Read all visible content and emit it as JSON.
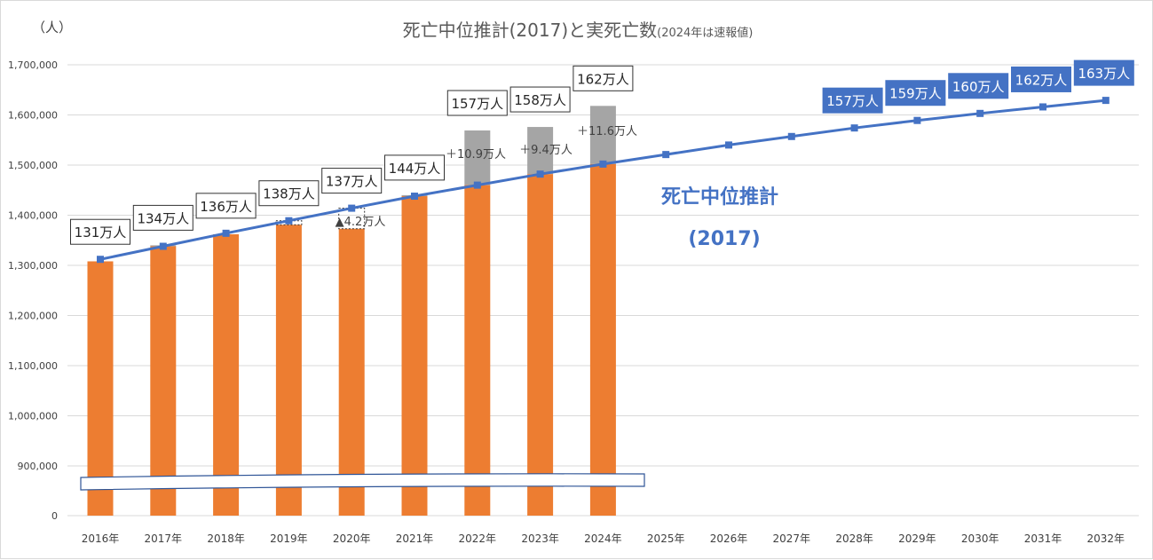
{
  "chart_data": {
    "type": "bar",
    "title": "死亡中位推計(2017)と実死亡数",
    "title_note": "(2024年は速報値)",
    "ylabel": "（人）",
    "ylim": [
      0,
      1700000
    ],
    "axis_break": [
      0,
      900000
    ],
    "yticks": [
      "0",
      "900,000",
      "1,000,000",
      "1,100,000",
      "1,200,000",
      "1,300,000",
      "1,400,000",
      "1,500,000",
      "1,600,000",
      "1,700,000"
    ],
    "ytick_values": [
      0,
      900000,
      1000000,
      1100000,
      1200000,
      1300000,
      1400000,
      1500000,
      1600000,
      1700000
    ],
    "categories": [
      "2016年",
      "2017年",
      "2018年",
      "2019年",
      "2020年",
      "2021年",
      "2022年",
      "2023年",
      "2024年",
      "2025年",
      "2026年",
      "2027年",
      "2028年",
      "2029年",
      "2030年",
      "2031年",
      "2032年"
    ],
    "series": [
      {
        "name": "実死亡数",
        "type": "bar",
        "color": "#ed7d31",
        "excess_color": "#a5a5a5",
        "values": [
          1308000,
          1340000,
          1362000,
          1381000,
          1373000,
          1440000,
          1569000,
          1576000,
          1618000,
          null,
          null,
          null,
          null,
          null,
          null,
          null,
          null
        ],
        "labels": [
          "131万人",
          "134万人",
          "136万人",
          "138万人",
          "137万人",
          "144万人",
          "157万人",
          "158万人",
          "162万人",
          null,
          null,
          null,
          null,
          null,
          null,
          null,
          null
        ]
      },
      {
        "name": "死亡中位推計(2017)",
        "type": "line",
        "color": "#4472c4",
        "values": [
          1312000,
          1338000,
          1364000,
          1389000,
          1414000,
          1438000,
          1460000,
          1482000,
          1502000,
          1521000,
          1540000,
          1557000,
          1574000,
          1589000,
          1603000,
          1616000,
          1629000
        ],
        "labels": [
          null,
          null,
          null,
          null,
          null,
          null,
          null,
          null,
          null,
          null,
          null,
          null,
          "157万人",
          "159万人",
          "160万人",
          "162万人",
          "163万人"
        ]
      }
    ],
    "annotations": [
      {
        "category": "2020年",
        "text": "▲4.2万人"
      },
      {
        "category": "2022年",
        "text": "＋10.9万人"
      },
      {
        "category": "2023年",
        "text": "＋9.4万人"
      },
      {
        "category": "2024年",
        "text": "＋11.6万人"
      }
    ],
    "series_label": [
      "死亡中位推計",
      "(2017)"
    ]
  }
}
